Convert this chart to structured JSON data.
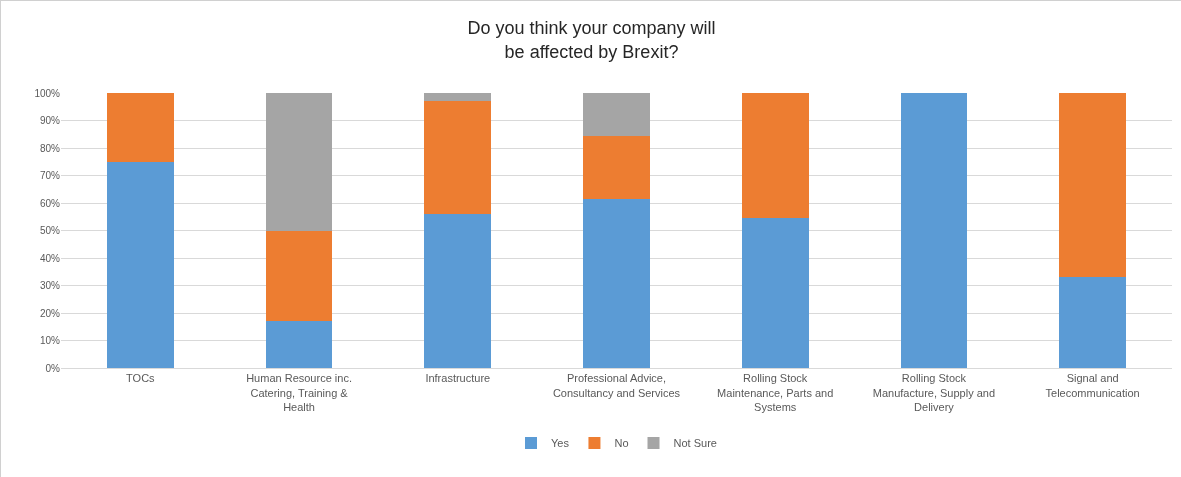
{
  "chart_data": {
    "type": "bar",
    "title": "Do you think your company will be affected by Brexit?",
    "stacked": true,
    "categories": [
      "TOCs",
      "Human Resource inc. Catering, Training & Health",
      "Infrastructure",
      "Professional Advice, Consultancy and Services",
      "Rolling Stock Maintenance, Parts and Systems",
      "Rolling Stock Manufacture, Supply and Delivery",
      "Signal and Telecommunication"
    ],
    "series": [
      {
        "name": "Yes",
        "color": "#5b9bd5",
        "values": [
          75,
          17,
          56,
          61.5,
          54.5,
          100,
          33
        ]
      },
      {
        "name": "No",
        "color": "#ed7d31",
        "values": [
          25,
          33,
          41,
          23,
          45.5,
          0,
          67
        ]
      },
      {
        "name": "Not Sure",
        "color": "#a5a5a5",
        "values": [
          0,
          50,
          3,
          15.5,
          0,
          0,
          0
        ]
      }
    ],
    "ylim": [
      0,
      100
    ],
    "yticks": [
      {
        "value": 0,
        "label": "0%"
      },
      {
        "value": 10,
        "label": "10%"
      },
      {
        "value": 20,
        "label": "20%"
      },
      {
        "value": 30,
        "label": "30%"
      },
      {
        "value": 40,
        "label": "40%"
      },
      {
        "value": 50,
        "label": "50%"
      },
      {
        "value": 60,
        "label": "60%"
      },
      {
        "value": 70,
        "label": "70%"
      },
      {
        "value": 80,
        "label": "80%"
      },
      {
        "value": 90,
        "label": "90%"
      },
      {
        "value": 100,
        "label": "100%"
      }
    ],
    "grid": "y",
    "legend": "bottom"
  }
}
